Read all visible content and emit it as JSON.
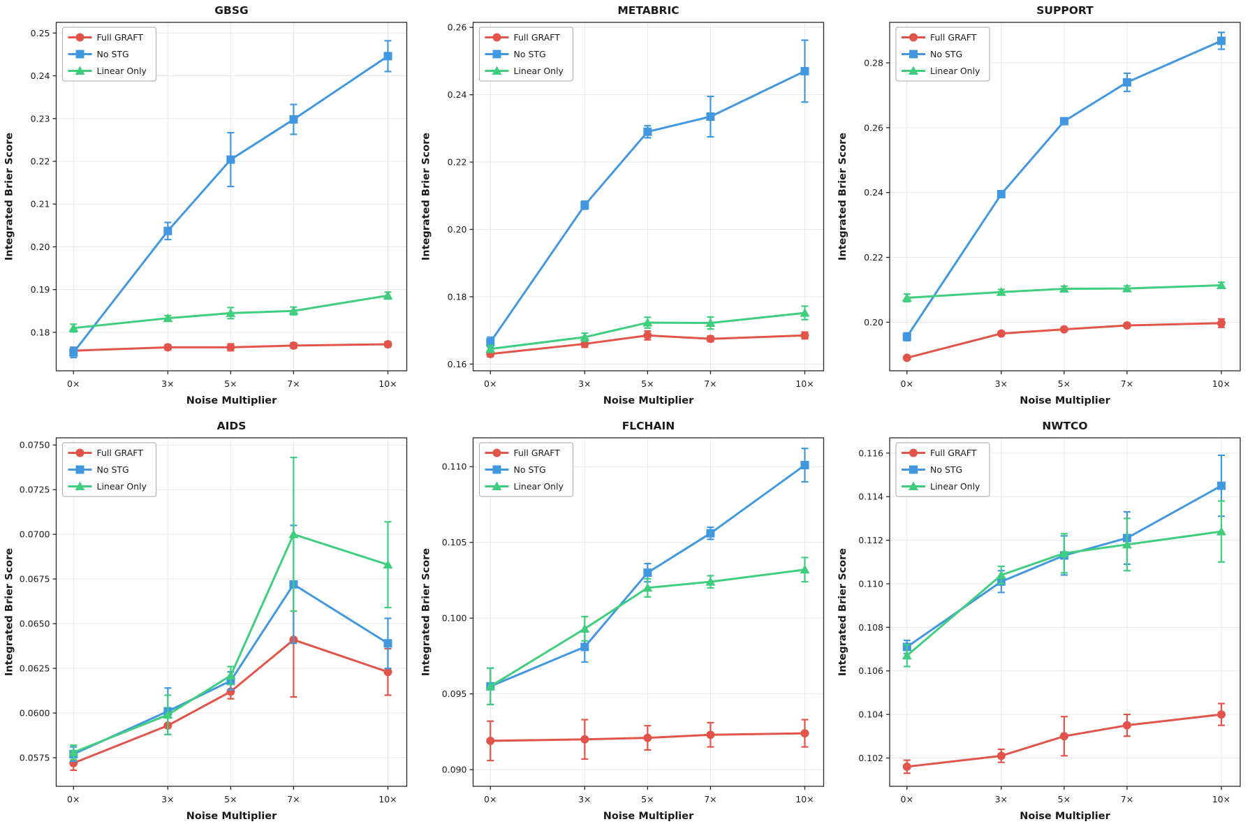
{
  "figure": {
    "xlabel": "Noise Multiplier",
    "ylabel": "Integrated Brier Score",
    "x_ticks": [
      0,
      3,
      5,
      7,
      10
    ],
    "x_tick_labels": [
      "0×",
      "3×",
      "5×",
      "7×",
      "10×"
    ],
    "xlim": [
      -0.55,
      10.6
    ],
    "legend_position": "upper left",
    "legend_entries": [
      "Full GRAFT",
      "No STG",
      "Linear Only"
    ],
    "series_styles": [
      {
        "name": "Full GRAFT",
        "color": "#e2544a",
        "marker": "circle"
      },
      {
        "name": "No STG",
        "color": "#4298e0",
        "marker": "square"
      },
      {
        "name": "Linear Only",
        "color": "#3fcd7e",
        "marker": "triangle"
      }
    ],
    "grid_color": "#e7e7e7",
    "axis_color": "#262626"
  },
  "chart_data": [
    {
      "type": "line",
      "title": "GBSG",
      "xlabel": "Noise Multiplier",
      "ylabel": "Integrated Brier Score",
      "x": [
        0,
        3,
        5,
        7,
        10
      ],
      "x_tick_labels": [
        "0×",
        "3×",
        "5×",
        "7×",
        "10×"
      ],
      "ylim": [
        0.171,
        0.2525
      ],
      "yticks": [
        0.18,
        0.19,
        0.2,
        0.21,
        0.22,
        0.23,
        0.24,
        0.25
      ],
      "ytick_labels": [
        "0.18",
        "0.19",
        "0.20",
        "0.21",
        "0.22",
        "0.23",
        "0.24",
        "0.25"
      ],
      "series": [
        {
          "name": "Full GRAFT",
          "values": [
            0.1757,
            0.1765,
            0.1765,
            0.1769,
            0.1772
          ],
          "errors": [
            0.0008,
            0.0006,
            0.0008,
            0.0006,
            0.0006
          ]
        },
        {
          "name": "No STG",
          "values": [
            0.1753,
            0.2037,
            0.2204,
            0.2298,
            0.2446
          ],
          "errors": [
            0.0012,
            0.002,
            0.0063,
            0.0035,
            0.0036
          ]
        },
        {
          "name": "Linear Only",
          "values": [
            0.181,
            0.1833,
            0.1845,
            0.185,
            0.1886
          ],
          "errors": [
            0.0009,
            0.0006,
            0.0013,
            0.0009,
            0.0008
          ]
        }
      ]
    },
    {
      "type": "line",
      "title": "METABRIC",
      "xlabel": "Noise Multiplier",
      "ylabel": "Integrated Brier Score",
      "x": [
        0,
        3,
        5,
        7,
        10
      ],
      "x_tick_labels": [
        "0×",
        "3×",
        "5×",
        "7×",
        "10×"
      ],
      "ylim": [
        0.158,
        0.2615
      ],
      "yticks": [
        0.16,
        0.18,
        0.2,
        0.22,
        0.24,
        0.26
      ],
      "ytick_labels": [
        "0.16",
        "0.18",
        "0.20",
        "0.22",
        "0.24",
        "0.26"
      ],
      "series": [
        {
          "name": "Full GRAFT",
          "values": [
            0.163,
            0.166,
            0.1685,
            0.1675,
            0.1685
          ],
          "errors": [
            0.0008,
            0.001,
            0.0013,
            0.0008,
            0.001
          ]
        },
        {
          "name": "No STG",
          "values": [
            0.1665,
            0.2072,
            0.229,
            0.2335,
            0.247
          ],
          "errors": [
            0.0015,
            0.0012,
            0.0018,
            0.006,
            0.0092
          ]
        },
        {
          "name": "Linear Only",
          "values": [
            0.1645,
            0.168,
            0.1723,
            0.1722,
            0.1752
          ],
          "errors": [
            0.001,
            0.0012,
            0.0016,
            0.0018,
            0.002
          ]
        }
      ]
    },
    {
      "type": "line",
      "title": "SUPPORT",
      "xlabel": "Noise Multiplier",
      "ylabel": "Integrated Brier Score",
      "x": [
        0,
        3,
        5,
        7,
        10
      ],
      "x_tick_labels": [
        "0×",
        "3×",
        "5×",
        "7×",
        "10×"
      ],
      "ylim": [
        0.185,
        0.2925
      ],
      "yticks": [
        0.2,
        0.22,
        0.24,
        0.26,
        0.28
      ],
      "ytick_labels": [
        "0.20",
        "0.22",
        "0.24",
        "0.26",
        "0.28"
      ],
      "series": [
        {
          "name": "Full GRAFT",
          "values": [
            0.189,
            0.1965,
            0.1978,
            0.199,
            0.1997
          ],
          "errors": [
            0.0004,
            0.0005,
            0.0005,
            0.0005,
            0.0013
          ]
        },
        {
          "name": "No STG",
          "values": [
            0.1955,
            0.2395,
            0.262,
            0.274,
            0.2868
          ],
          "errors": [
            0.0012,
            0.0008,
            0.0008,
            0.0028,
            0.0026
          ]
        },
        {
          "name": "Linear Only",
          "values": [
            0.2075,
            0.2093,
            0.2103,
            0.2104,
            0.2114
          ],
          "errors": [
            0.0012,
            0.0008,
            0.0008,
            0.0008,
            0.0009
          ]
        }
      ]
    },
    {
      "type": "line",
      "title": "AIDS",
      "xlabel": "Noise Multiplier",
      "ylabel": "Integrated Brier Score",
      "x": [
        0,
        3,
        5,
        7,
        10
      ],
      "x_tick_labels": [
        "0×",
        "3×",
        "5×",
        "7×",
        "10×"
      ],
      "ylim": [
        0.0559,
        0.0754
      ],
      "yticks": [
        0.0575,
        0.06,
        0.0625,
        0.065,
        0.0675,
        0.07,
        0.0725,
        0.075
      ],
      "ytick_labels": [
        "0.0575",
        "0.0600",
        "0.0625",
        "0.0650",
        "0.0675",
        "0.0700",
        "0.0725",
        "0.0750"
      ],
      "series": [
        {
          "name": "Full GRAFT",
          "values": [
            0.0572,
            0.0593,
            0.0612,
            0.0641,
            0.0623
          ],
          "errors": [
            0.0004,
            0.0005,
            0.0004,
            0.0032,
            0.0013
          ]
        },
        {
          "name": "No STG",
          "values": [
            0.0577,
            0.0601,
            0.0618,
            0.0672,
            0.0639
          ],
          "errors": [
            0.0004,
            0.0013,
            0.0005,
            0.0033,
            0.0014
          ]
        },
        {
          "name": "Linear Only",
          "values": [
            0.0578,
            0.0599,
            0.0621,
            0.07,
            0.0683
          ],
          "errors": [
            0.0004,
            0.0011,
            0.0005,
            0.0043,
            0.0024
          ]
        }
      ]
    },
    {
      "type": "line",
      "title": "FLCHAIN",
      "xlabel": "Noise Multiplier",
      "ylabel": "Integrated Brier Score",
      "x": [
        0,
        3,
        5,
        7,
        10
      ],
      "x_tick_labels": [
        "0×",
        "3×",
        "5×",
        "7×",
        "10×"
      ],
      "ylim": [
        0.0889,
        0.1119
      ],
      "yticks": [
        0.09,
        0.095,
        0.1,
        0.105,
        0.11
      ],
      "ytick_labels": [
        "0.090",
        "0.095",
        "0.100",
        "0.105",
        "0.110"
      ],
      "series": [
        {
          "name": "Full GRAFT",
          "values": [
            0.0919,
            0.092,
            0.0921,
            0.0923,
            0.0924
          ],
          "errors": [
            0.0013,
            0.0013,
            0.0008,
            0.0008,
            0.0009
          ]
        },
        {
          "name": "No STG",
          "values": [
            0.0955,
            0.0981,
            0.103,
            0.1056,
            0.1101
          ],
          "errors": [
            0.0012,
            0.001,
            0.0006,
            0.0004,
            0.0011
          ]
        },
        {
          "name": "Linear Only",
          "values": [
            0.0955,
            0.0993,
            0.102,
            0.1024,
            0.1032
          ],
          "errors": [
            0.0012,
            0.0008,
            0.0006,
            0.0004,
            0.0008
          ]
        }
      ]
    },
    {
      "type": "line",
      "title": "NWTCO",
      "xlabel": "Noise Multiplier",
      "ylabel": "Integrated Brier Score",
      "x": [
        0,
        3,
        5,
        7,
        10
      ],
      "x_tick_labels": [
        "0×",
        "3×",
        "5×",
        "7×",
        "10×"
      ],
      "ylim": [
        0.1007,
        0.1167
      ],
      "yticks": [
        0.102,
        0.104,
        0.106,
        0.108,
        0.11,
        0.112,
        0.114,
        0.116
      ],
      "ytick_labels": [
        "0.102",
        "0.104",
        "0.106",
        "0.108",
        "0.110",
        "0.112",
        "0.114",
        "0.116"
      ],
      "series": [
        {
          "name": "Full GRAFT",
          "values": [
            0.1016,
            0.1021,
            0.103,
            0.1035,
            0.104
          ],
          "errors": [
            0.0003,
            0.0003,
            0.0009,
            0.0005,
            0.0005
          ]
        },
        {
          "name": "No STG",
          "values": [
            0.1071,
            0.1101,
            0.1113,
            0.1121,
            0.1145
          ],
          "errors": [
            0.0003,
            0.0005,
            0.0009,
            0.0012,
            0.0014
          ]
        },
        {
          "name": "Linear Only",
          "values": [
            0.1067,
            0.1104,
            0.1114,
            0.1118,
            0.1124
          ],
          "errors": [
            0.0005,
            0.0004,
            0.0009,
            0.0012,
            0.0014
          ]
        }
      ]
    }
  ]
}
